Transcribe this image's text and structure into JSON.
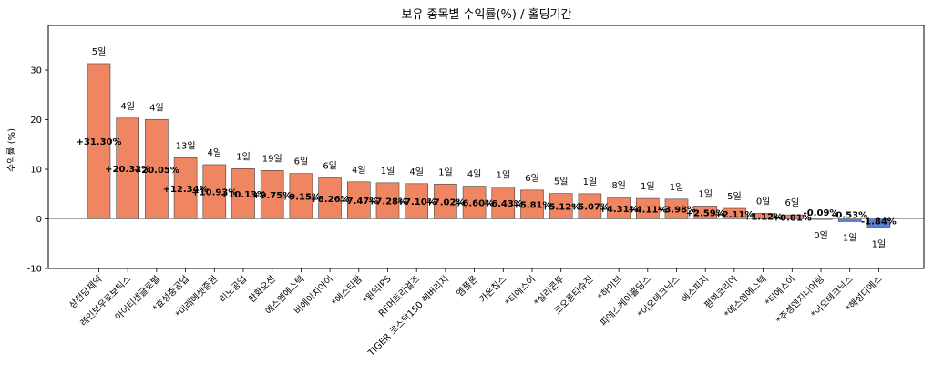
{
  "chart_data": {
    "type": "bar",
    "title": "보유 종목별 수익률(%) / 홀딩기간",
    "xlabel": "",
    "ylabel": "수익률 (%)",
    "ylim": [
      -10,
      39
    ],
    "yticks": [
      -10,
      0,
      10,
      20,
      30
    ],
    "grid": false,
    "colors": {
      "positive": "#f08562",
      "negative": "#5b80d8"
    },
    "categories": [
      "삼천당제약",
      "레인보우로보틱스",
      "아이티센글로벌",
      "*효성중공업",
      "*미래에셋증권",
      "리노공업",
      "한화오션",
      "에스엔에스텍",
      "비에이치아이",
      "*에스티팜",
      "*원익IPS",
      "RF머트리얼즈",
      "TIGER 코스닥150 레버리지",
      "엠플론",
      "가온칩스",
      "*티에스이",
      "*실리콘투",
      "코오롱티슈진",
      "*하이브",
      "피에스케이홀딩스",
      "*이오테크닉스",
      "에스피지",
      "펌텍코리아",
      "*에스엔에스텍",
      "*티에스이",
      "*주성엔지니어링",
      "*이오테크닉스",
      "*해성디에스"
    ],
    "values": [
      31.3,
      20.32,
      20.05,
      12.34,
      10.93,
      10.13,
      9.75,
      9.15,
      8.26,
      7.47,
      7.28,
      7.1,
      7.02,
      6.6,
      6.43,
      5.81,
      5.12,
      5.07,
      4.31,
      4.11,
      3.98,
      2.59,
      2.11,
      1.12,
      0.81,
      -0.09,
      -0.53,
      -1.84
    ],
    "value_labels": [
      "+31.30%",
      "+20.32%",
      "+20.05%",
      "+12.34%",
      "+10.93%",
      "+10.13%",
      "+9.75%",
      "+9.15%",
      "+8.26%",
      "+7.47%",
      "+7.28%",
      "+7.10%",
      "+7.02%",
      "+6.60%",
      "+6.43%",
      "+5.81%",
      "+5.12%",
      "+5.07%",
      "+4.31%",
      "+4.11%",
      "+3.98%",
      "+2.59%",
      "+2.11%",
      "+1.12%",
      "+0.81%",
      "-0.09%",
      "-0.53%",
      "-1.84%"
    ],
    "holding_labels": [
      "5일",
      "4일",
      "4일",
      "13일",
      "4일",
      "1일",
      "19일",
      "6일",
      "6일",
      "4일",
      "1일",
      "4일",
      "1일",
      "4일",
      "1일",
      "6일",
      "5일",
      "1일",
      "8일",
      "1일",
      "1일",
      "1일",
      "5일",
      "0일",
      "6일",
      "0일",
      "1일",
      "1일"
    ]
  }
}
